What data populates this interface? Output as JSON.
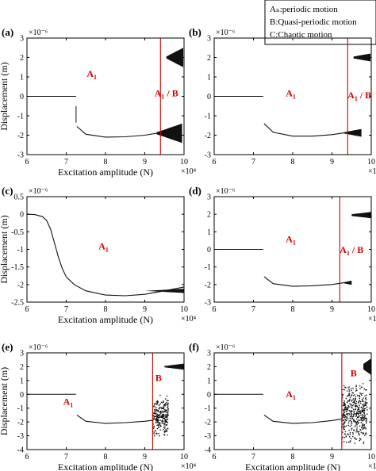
{
  "legend": {
    "lines": [
      "Aₙ:periodic motion",
      "B:Quasi-periodic motion",
      "C:Chaotic motion"
    ]
  },
  "axis_text": {
    "xlabel": "Excitation amplitude (N)",
    "ylabel": "Displacement (m)",
    "y_exponent": "×10⁻⁶",
    "x_exponent": "×10⁴"
  },
  "colors": {
    "marker": "#d40000",
    "data": "#111111",
    "axis": "#000000"
  },
  "chart_data": [
    {
      "type": "scatter",
      "panel": "(a)",
      "xlabel": "Excitation amplitude (N)",
      "ylabel": "Displacement (m)",
      "xlim": [
        6,
        10
      ],
      "ylim": [
        -3,
        3
      ],
      "xticks": [
        6,
        7,
        8,
        9,
        10
      ],
      "yticks": [
        -3,
        -2,
        -1,
        0,
        1,
        2,
        3
      ],
      "series": [
        {
          "kind": "flat",
          "x": [
            6.0,
            7.25
          ],
          "y": 0
        },
        {
          "kind": "drop",
          "x": 7.25,
          "y": [
            -0.5,
            -1.35
          ]
        },
        {
          "kind": "curve",
          "points": [
            [
              7.27,
              -1.55
            ],
            [
              7.5,
              -1.95
            ],
            [
              8.0,
              -2.1
            ],
            [
              8.5,
              -2.08
            ],
            [
              9.0,
              -2.0
            ],
            [
              9.3,
              -1.9
            ]
          ]
        },
        {
          "kind": "band",
          "x": [
            9.3,
            9.95
          ],
          "y_center": -1.9,
          "halfwidth": [
            0.05,
            0.5
          ]
        },
        {
          "kind": "band",
          "x": [
            9.55,
            9.98
          ],
          "y_center": 2.0,
          "halfwidth": [
            0.05,
            0.5
          ]
        }
      ],
      "markers": [
        {
          "x": 9.4
        }
      ],
      "annotations": [
        {
          "text": "A",
          "sub": "1",
          "x": 7.65,
          "y": 1.0
        },
        {
          "text": "A",
          "sub": "1",
          "after": " / B",
          "x": 9.55,
          "y": 0.0
        }
      ]
    },
    {
      "type": "scatter",
      "panel": "(b)",
      "xlabel": "",
      "ylabel": "",
      "xlim": [
        6,
        10
      ],
      "ylim": [
        -3,
        3
      ],
      "xticks": [
        6,
        7,
        8,
        9,
        10
      ],
      "yticks": [
        -3,
        -2,
        -1,
        0,
        1,
        2,
        3
      ],
      "series": [
        {
          "kind": "flat",
          "x": [
            6.0,
            7.25
          ],
          "y": 0
        },
        {
          "kind": "curve",
          "points": [
            [
              7.27,
              -1.4
            ],
            [
              7.5,
              -1.85
            ],
            [
              8.0,
              -2.05
            ],
            [
              8.5,
              -2.05
            ],
            [
              9.0,
              -1.97
            ],
            [
              9.3,
              -1.88
            ]
          ]
        },
        {
          "kind": "band",
          "x": [
            9.3,
            9.75
          ],
          "y_center": -1.88,
          "halfwidth": [
            0.03,
            0.2
          ]
        },
        {
          "kind": "band",
          "x": [
            9.55,
            9.98
          ],
          "y_center": 2.0,
          "halfwidth": [
            0.05,
            0.2
          ]
        }
      ],
      "markers": [
        {
          "x": 9.4
        }
      ],
      "annotations": [
        {
          "text": "A",
          "sub": "1",
          "x": 7.95,
          "y": 0.0
        },
        {
          "text": "A",
          "sub": "1",
          "after": " / B",
          "x": 9.7,
          "y": -0.1
        }
      ]
    },
    {
      "type": "line",
      "panel": "(c)",
      "xlabel": "Excitation amplitude (N)",
      "ylabel": "Displacement (m)",
      "xlim": [
        6,
        10
      ],
      "ylim": [
        -2.5,
        0.5
      ],
      "xticks": [
        6,
        7,
        8,
        9,
        10
      ],
      "yticks": [
        -2.5,
        -2,
        -1.5,
        -1,
        -0.5,
        0,
        0.5
      ],
      "series": [
        {
          "kind": "curve",
          "points": [
            [
              6.0,
              0.0
            ],
            [
              6.2,
              -0.01
            ],
            [
              6.4,
              -0.07
            ],
            [
              6.5,
              -0.18
            ],
            [
              6.6,
              -0.42
            ],
            [
              6.7,
              -0.82
            ],
            [
              6.8,
              -1.22
            ],
            [
              6.9,
              -1.55
            ],
            [
              7.0,
              -1.78
            ],
            [
              7.2,
              -2.0
            ],
            [
              7.5,
              -2.18
            ],
            [
              8.0,
              -2.3
            ],
            [
              8.5,
              -2.32
            ],
            [
              9.0,
              -2.28
            ],
            [
              9.5,
              -2.18
            ],
            [
              10.0,
              -2.07
            ]
          ]
        },
        {
          "kind": "band",
          "x": [
            9.0,
            10.0
          ],
          "y_center": -2.18,
          "halfwidth": [
            0.0,
            0.06
          ]
        }
      ],
      "markers": [],
      "annotations": [
        {
          "text": "A",
          "sub": "1",
          "x": 7.95,
          "y": -1.0
        }
      ]
    },
    {
      "type": "scatter",
      "panel": "(d)",
      "xlabel": "",
      "ylabel": "",
      "xlim": [
        6,
        10
      ],
      "ylim": [
        -3,
        3
      ],
      "xticks": [
        6,
        7,
        8,
        9,
        10
      ],
      "yticks": [
        -3,
        -2,
        -1,
        0,
        1,
        2,
        3
      ],
      "series": [
        {
          "kind": "flat",
          "x": [
            6.0,
            7.25
          ],
          "y": 0
        },
        {
          "kind": "curve",
          "points": [
            [
              7.27,
              -1.55
            ],
            [
              7.5,
              -1.95
            ],
            [
              8.0,
              -2.1
            ],
            [
              8.5,
              -2.07
            ],
            [
              9.0,
              -2.0
            ],
            [
              9.3,
              -1.9
            ]
          ]
        },
        {
          "kind": "band",
          "x": [
            9.3,
            9.5
          ],
          "y_center": -1.9,
          "halfwidth": [
            0.03,
            0.12
          ]
        },
        {
          "kind": "band",
          "x": [
            9.5,
            10.0
          ],
          "y_center": 1.95,
          "halfwidth": [
            0.05,
            0.18
          ]
        }
      ],
      "markers": [
        {
          "x": 9.2
        }
      ],
      "annotations": [
        {
          "text": "A",
          "sub": "1",
          "x": 7.95,
          "y": 0.4
        },
        {
          "text": "A",
          "sub": "1",
          "after": " / B",
          "x": 9.5,
          "y": -0.2
        }
      ]
    },
    {
      "type": "scatter",
      "panel": "(e)",
      "xlabel": "Excitation amplitude (N)",
      "ylabel": "Displacement (m)",
      "xlim": [
        6,
        10
      ],
      "ylim": [
        -4,
        3
      ],
      "xticks": [
        6,
        7,
        8,
        9,
        10
      ],
      "yticks": [
        -4,
        -3,
        -2,
        -1,
        0,
        1,
        2,
        3
      ],
      "series": [
        {
          "kind": "flat",
          "x": [
            6.0,
            7.25
          ],
          "y": 0
        },
        {
          "kind": "curve",
          "points": [
            [
              7.27,
              -1.5
            ],
            [
              7.5,
              -1.95
            ],
            [
              8.0,
              -2.1
            ],
            [
              8.5,
              -2.05
            ],
            [
              9.0,
              -1.95
            ],
            [
              9.2,
              -1.88
            ]
          ]
        },
        {
          "kind": "scatter_cloud",
          "x": [
            9.2,
            9.6
          ],
          "y": [
            -3.2,
            0.0
          ],
          "n": 260
        },
        {
          "kind": "band",
          "x": [
            9.5,
            10.0
          ],
          "y_center": 2.0,
          "halfwidth": [
            0.05,
            0.22
          ]
        }
      ],
      "markers": [
        {
          "x": 9.2
        }
      ],
      "annotations": [
        {
          "text": "A",
          "sub": "1",
          "x": 7.05,
          "y": -0.75
        },
        {
          "text": "B",
          "x": 9.35,
          "y": 0.95
        }
      ]
    },
    {
      "type": "scatter",
      "panel": "(f)",
      "xlabel": "Excitation amplitude (N)",
      "ylabel": "",
      "xlim": [
        6,
        10
      ],
      "ylim": [
        -4,
        3
      ],
      "xticks": [
        6,
        7,
        8,
        9,
        10
      ],
      "yticks": [
        -4,
        -3,
        -2,
        -1,
        0,
        1,
        2,
        3
      ],
      "series": [
        {
          "kind": "flat",
          "x": [
            6.0,
            7.25
          ],
          "y": 0
        },
        {
          "kind": "curve",
          "points": [
            [
              7.27,
              -1.5
            ],
            [
              7.5,
              -1.95
            ],
            [
              8.0,
              -2.1
            ],
            [
              8.5,
              -2.05
            ],
            [
              9.0,
              -1.9
            ],
            [
              9.25,
              -1.78
            ]
          ]
        },
        {
          "kind": "scatter_cloud",
          "x": [
            9.25,
            9.9
          ],
          "y": [
            -3.7,
            1.0
          ],
          "n": 420
        },
        {
          "kind": "band",
          "x": [
            9.8,
            10.0
          ],
          "y_center": 2.0,
          "halfwidth": [
            0.2,
            0.6
          ]
        }
      ],
      "markers": [
        {
          "x": 9.25
        }
      ],
      "annotations": [
        {
          "text": "A",
          "sub": "1",
          "x": 7.95,
          "y": -0.2
        },
        {
          "text": "B",
          "x": 9.55,
          "y": 1.3
        }
      ]
    }
  ]
}
